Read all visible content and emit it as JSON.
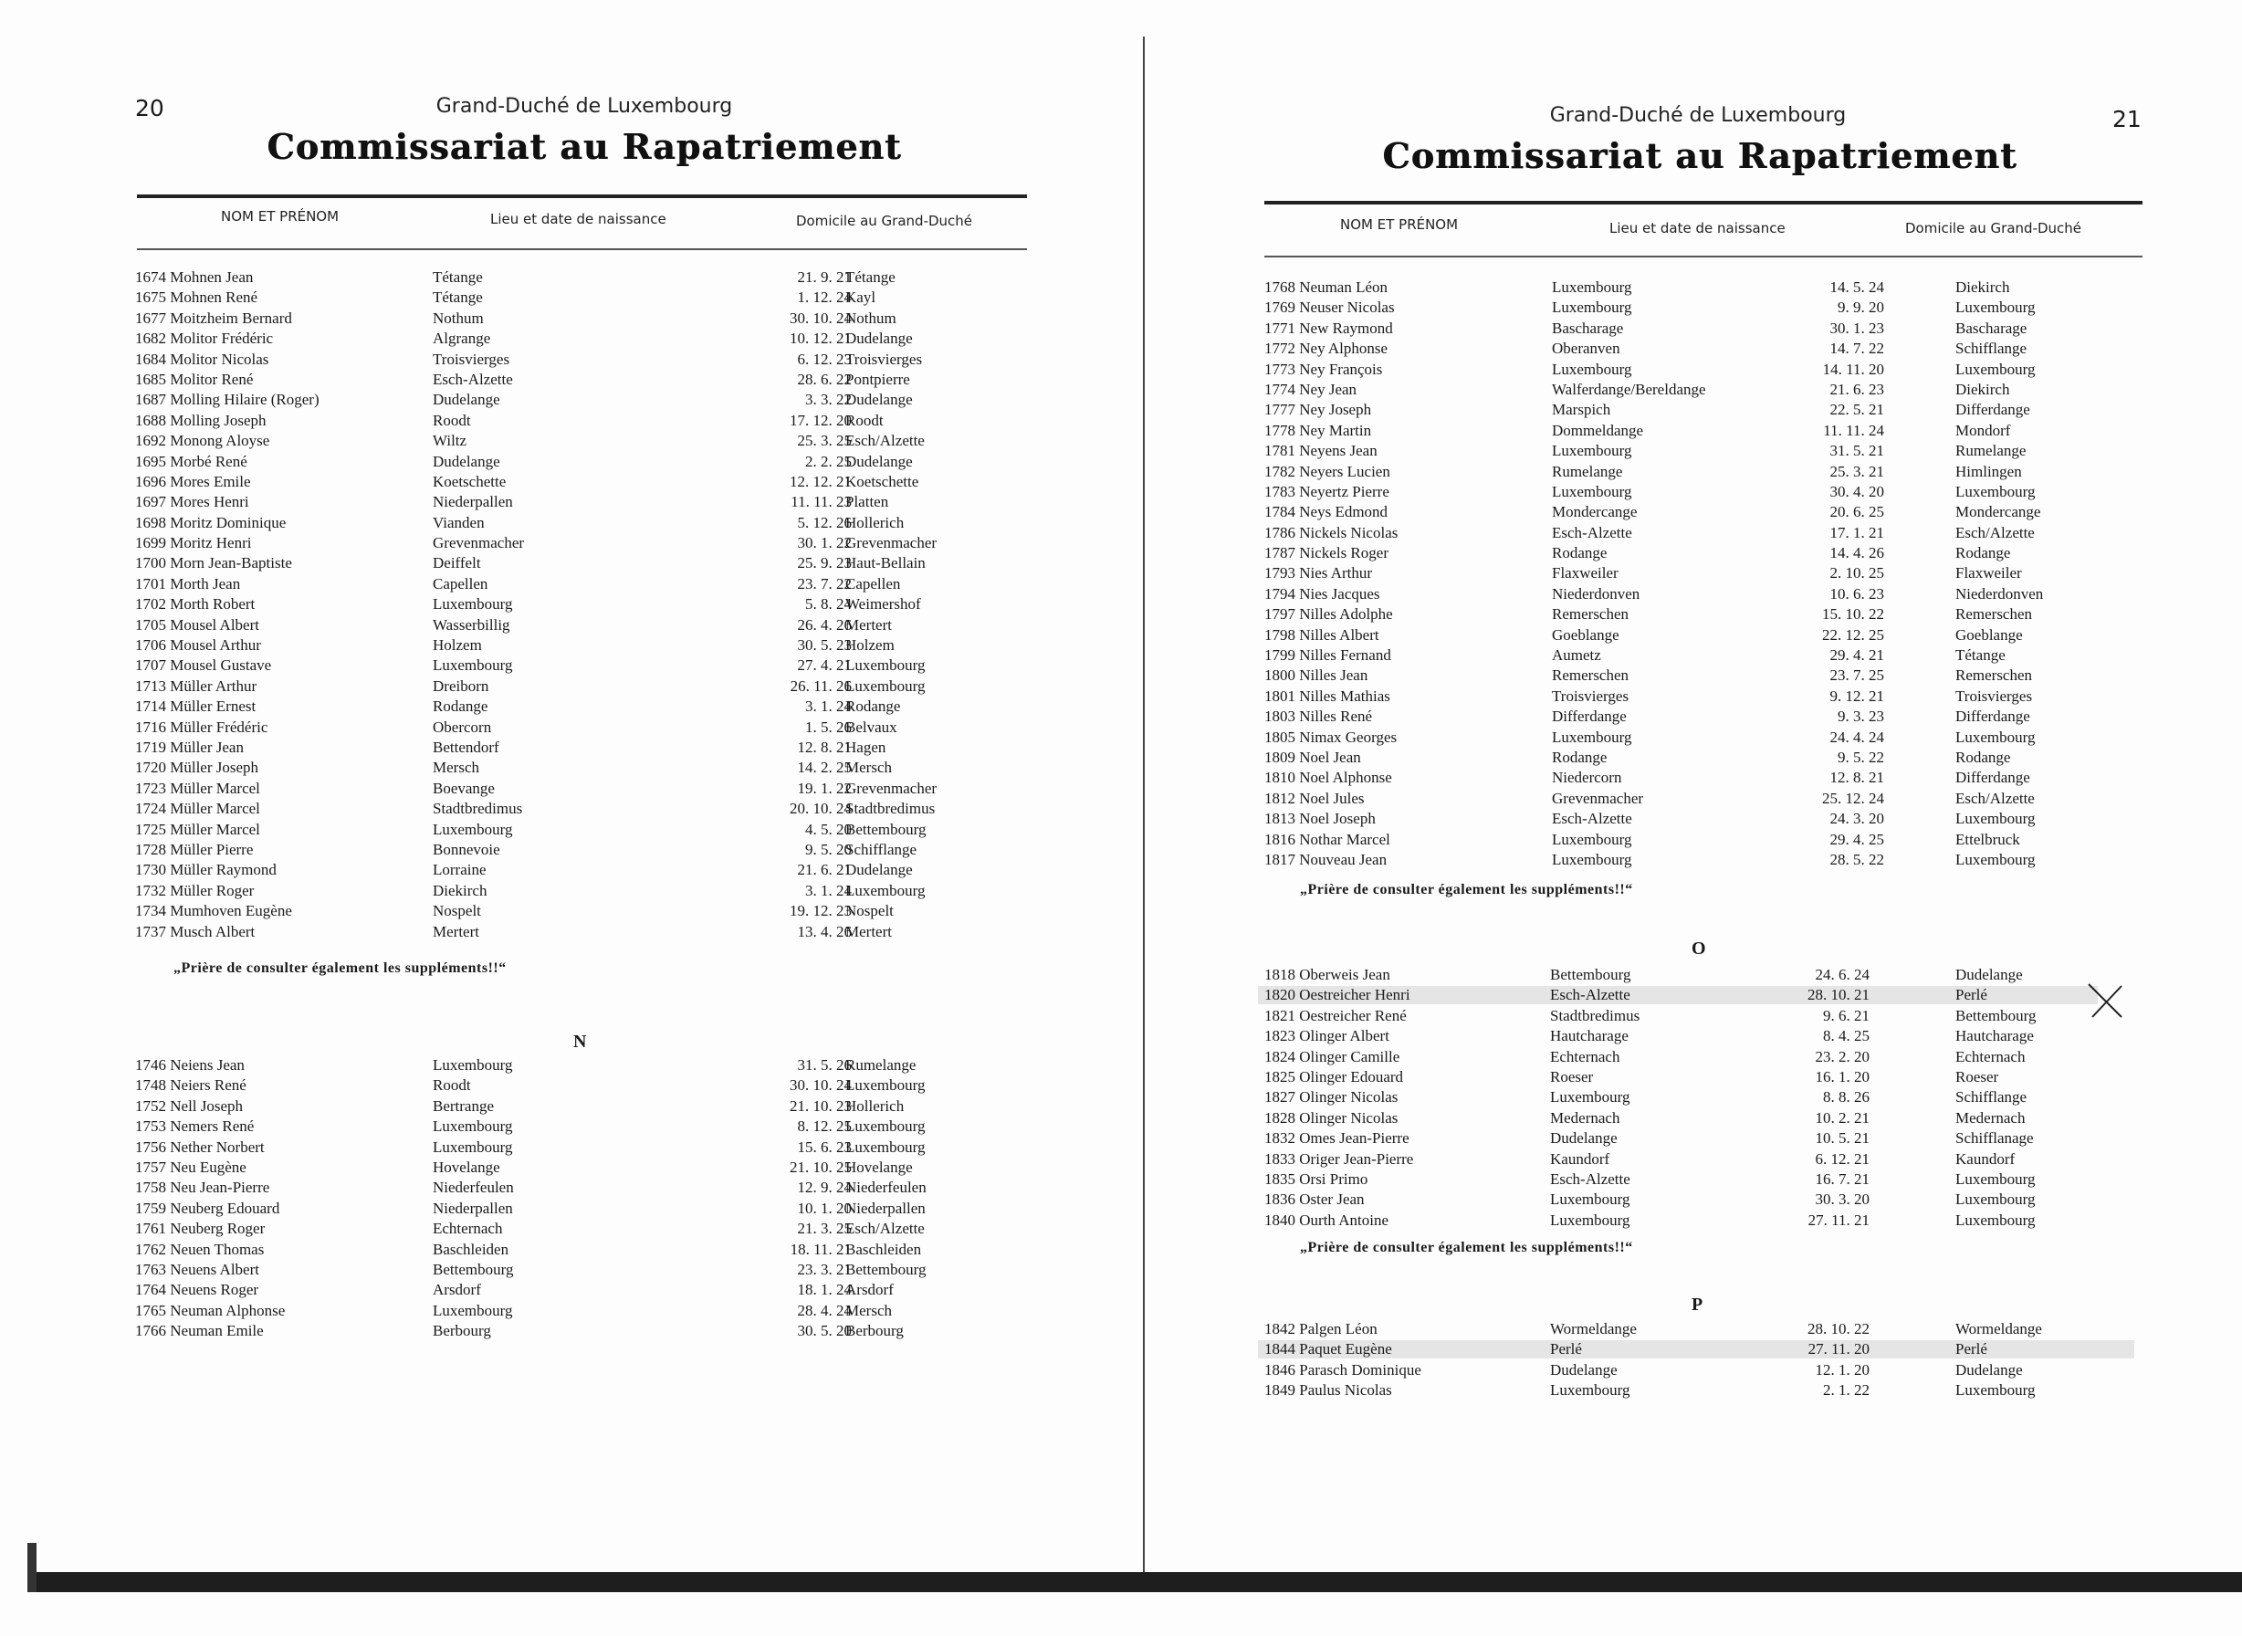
{
  "left_page": {
    "page_number": "20",
    "subtitle": "Grand-Duché de Luxembourg",
    "title": "Commissariat au Rapatriement",
    "columns": [
      "NOM ET PRÉNOM",
      "Lieu et date de naissance",
      "Domicile au Grand-Duché"
    ],
    "section_m": [
      [
        "1674 Mohnen Jean",
        "Tétange",
        "21. 9. 21",
        "Tétange"
      ],
      [
        "1675 Mohnen René",
        "Tétange",
        "1. 12. 24",
        "Kayl"
      ],
      [
        "1677 Moitzheim Bernard",
        "Nothum",
        "30. 10. 24",
        "Nothum"
      ],
      [
        "1682 Molitor Frédéric",
        "Algrange",
        "10. 12. 21",
        "Dudelange"
      ],
      [
        "1684 Molitor Nicolas",
        "Troisvierges",
        "6. 12. 23",
        "Troisvierges"
      ],
      [
        "1685 Molitor René",
        "Esch-Alzette",
        "28. 6. 22",
        "Pontpierre"
      ],
      [
        "1687 Molling Hilaire (Roger)",
        "Dudelange",
        "3. 3. 22",
        "Dudelange"
      ],
      [
        "1688 Molling Joseph",
        "Roodt",
        "17. 12. 20",
        "Roodt"
      ],
      [
        "1692 Monong Aloyse",
        "Wiltz",
        "25. 3. 25",
        "Esch/Alzette"
      ],
      [
        "1695 Morbé René",
        "Dudelange",
        "2. 2. 25",
        "Dudelange"
      ],
      [
        "1696 Mores Emile",
        "Koetschette",
        "12. 12. 21",
        "Koetschette"
      ],
      [
        "1697 Mores Henri",
        "Niederpallen",
        "11. 11. 23",
        "Platten"
      ],
      [
        "1698 Moritz Dominique",
        "Vianden",
        "5. 12. 26",
        "Hollerich"
      ],
      [
        "1699 Moritz Henri",
        "Grevenmacher",
        "30. 1. 22",
        "Grevenmacher"
      ],
      [
        "1700 Morn Jean-Baptiste",
        "Deiffelt",
        "25. 9. 23",
        "Haut-Bellain"
      ],
      [
        "1701 Morth Jean",
        "Capellen",
        "23. 7. 22",
        "Capellen"
      ],
      [
        "1702 Morth Robert",
        "Luxembourg",
        "5. 8. 24",
        "Weimershof"
      ],
      [
        "1705 Mousel Albert",
        "Wasserbillig",
        "26. 4. 26",
        "Mertert"
      ],
      [
        "1706 Mousel Arthur",
        "Holzem",
        "30. 5. 23",
        "Holzem"
      ],
      [
        "1707 Mousel Gustave",
        "Luxembourg",
        "27. 4. 21",
        "Luxembourg"
      ],
      [
        "1713 Müller Arthur",
        "Dreiborn",
        "26. 11. 26",
        "Luxembourg"
      ],
      [
        "1714 Müller Ernest",
        "Rodange",
        "3. 1. 24",
        "Rodange"
      ],
      [
        "1716 Müller Frédéric",
        "Obercorn",
        "1. 5. 26",
        "Belvaux"
      ],
      [
        "1719 Müller Jean",
        "Bettendorf",
        "12. 8. 21",
        "Hagen"
      ],
      [
        "1720 Müller Joseph",
        "Mersch",
        "14. 2. 25",
        "Mersch"
      ],
      [
        "1723 Müller Marcel",
        "Boevange",
        "19. 1. 22",
        "Grevenmacher"
      ],
      [
        "1724 Müller Marcel",
        "Stadtbredimus",
        "20. 10. 24",
        "Stadtbredimus"
      ],
      [
        "1725 Müller Marcel",
        "Luxembourg",
        "4. 5. 20",
        "Bettembourg"
      ],
      [
        "1728 Müller Pierre",
        "Bonnevoie",
        "9. 5. 20",
        "Schifflange"
      ],
      [
        "1730 Müller Raymond",
        "Lorraine",
        "21. 6. 21",
        "Dudelange"
      ],
      [
        "1732 Müller Roger",
        "Diekirch",
        "3. 1. 24",
        "Luxembourg"
      ],
      [
        "1734 Mumhoven Eugène",
        "Nospelt",
        "19. 12. 23",
        "Nospelt"
      ],
      [
        "1737 Musch Albert",
        "Mertert",
        "13. 4. 26",
        "Mertert"
      ]
    ],
    "note_m": "„Prière de consulter également les suppléments!!“",
    "letter_n": "N",
    "section_n": [
      [
        "1746 Neiens Jean",
        "Luxembourg",
        "31. 5. 26",
        "Rumelange"
      ],
      [
        "1748 Neiers René",
        "Roodt",
        "30. 10. 24",
        "Luxembourg"
      ],
      [
        "1752 Nell Joseph",
        "Bertrange",
        "21. 10. 23",
        "Hollerich"
      ],
      [
        "1753 Nemers René",
        "Luxembourg",
        "8. 12. 25",
        "Luxembourg"
      ],
      [
        "1756 Nether Norbert",
        "Luxembourg",
        "15. 6. 23",
        "Luxembourg"
      ],
      [
        "1757 Neu Eugène",
        "Hovelange",
        "21. 10. 25",
        "Hovelange"
      ],
      [
        "1758 Neu Jean-Pierre",
        "Niederfeulen",
        "12. 9. 24",
        "Niederfeulen"
      ],
      [
        "1759 Neuberg Edouard",
        "Niederpallen",
        "10. 1. 20",
        "Niederpallen"
      ],
      [
        "1761 Neuberg Roger",
        "Echternach",
        "21. 3. 25",
        "Esch/Alzette"
      ],
      [
        "1762 Neuen Thomas",
        "Baschleiden",
        "18. 11. 21",
        "Baschleiden"
      ],
      [
        "1763 Neuens Albert",
        "Bettembourg",
        "23. 3. 21",
        "Bettembourg"
      ],
      [
        "1764 Neuens Roger",
        "Arsdorf",
        "18. 1. 24",
        "Arsdorf"
      ],
      [
        "1765 Neuman Alphonse",
        "Luxembourg",
        "28. 4. 24",
        "Mersch"
      ],
      [
        "1766 Neuman Emile",
        "Berbourg",
        "30. 5. 20",
        "Berbourg"
      ]
    ]
  },
  "right_page": {
    "page_number": "21",
    "subtitle": "Grand-Duché de Luxembourg",
    "title": "Commissariat au Rapatriement",
    "columns": [
      "NOM ET PRÉNOM",
      "Lieu et date de naissance",
      "Domicile au Grand-Duché"
    ],
    "section_n": [
      [
        "1768 Neuman Léon",
        "Luxembourg",
        "14. 5. 24",
        "Diekirch"
      ],
      [
        "1769 Neuser Nicolas",
        "Luxembourg",
        "9. 9. 20",
        "Luxembourg"
      ],
      [
        "1771 New Raymond",
        "Bascharage",
        "30. 1. 23",
        "Bascharage"
      ],
      [
        "1772 Ney Alphonse",
        "Oberanven",
        "14. 7. 22",
        "Schifflange"
      ],
      [
        "1773 Ney François",
        "Luxembourg",
        "14. 11. 20",
        "Luxembourg"
      ],
      [
        "1774 Ney Jean",
        "Walferdange/Bereldange",
        "21. 6. 23",
        "Diekirch"
      ],
      [
        "1777 Ney Joseph",
        "Marspich",
        "22. 5. 21",
        "Differdange"
      ],
      [
        "1778 Ney Martin",
        "Dommeldange",
        "11. 11. 24",
        "Mondorf"
      ],
      [
        "1781 Neyens Jean",
        "Luxembourg",
        "31. 5. 21",
        "Rumelange"
      ],
      [
        "1782 Neyers Lucien",
        "Rumelange",
        "25. 3. 21",
        "Himlingen"
      ],
      [
        "1783 Neyertz Pierre",
        "Luxembourg",
        "30. 4. 20",
        "Luxembourg"
      ],
      [
        "1784 Neys Edmond",
        "Mondercange",
        "20. 6. 25",
        "Mondercange"
      ],
      [
        "1786 Nickels Nicolas",
        "Esch-Alzette",
        "17. 1. 21",
        "Esch/Alzette"
      ],
      [
        "1787 Nickels Roger",
        "Rodange",
        "14. 4. 26",
        "Rodange"
      ],
      [
        "1793 Nies Arthur",
        "Flaxweiler",
        "2. 10. 25",
        "Flaxweiler"
      ],
      [
        "1794 Nies Jacques",
        "Niederdonven",
        "10. 6. 23",
        "Niederdonven"
      ],
      [
        "1797 Nilles Adolphe",
        "Remerschen",
        "15. 10. 22",
        "Remerschen"
      ],
      [
        "1798 Nilles Albert",
        "Goeblange",
        "22. 12. 25",
        "Goeblange"
      ],
      [
        "1799 Nilles Fernand",
        "Aumetz",
        "29. 4. 21",
        "Tétange"
      ],
      [
        "1800 Nilles Jean",
        "Remerschen",
        "23. 7. 25",
        "Remerschen"
      ],
      [
        "1801 Nilles Mathias",
        "Troisvierges",
        "9. 12. 21",
        "Troisvierges"
      ],
      [
        "1803 Nilles René",
        "Differdange",
        "9. 3. 23",
        "Differdange"
      ],
      [
        "1805 Nimax Georges",
        "Luxembourg",
        "24. 4. 24",
        "Luxembourg"
      ],
      [
        "1809 Noel Jean",
        "Rodange",
        "9. 5. 22",
        "Rodange"
      ],
      [
        "1810 Noel Alphonse",
        "Niedercorn",
        "12. 8. 21",
        "Differdange"
      ],
      [
        "1812 Noel Jules",
        "Grevenmacher",
        "25. 12. 24",
        "Esch/Alzette"
      ],
      [
        "1813 Noel Joseph",
        "Esch-Alzette",
        "24. 3. 20",
        "Luxembourg"
      ],
      [
        "1816 Nothar Marcel",
        "Luxembourg",
        "29. 4. 25",
        "Ettelbruck"
      ],
      [
        "1817 Nouveau Jean",
        "Luxembourg",
        "28. 5. 22",
        "Luxembourg"
      ]
    ],
    "note_n": "„Prière de consulter également les suppléments!!“",
    "letter_o": "O",
    "section_o": [
      [
        "1818 Oberweis Jean",
        "Bettembourg",
        "24. 6. 24",
        "Dudelange"
      ],
      [
        "1820 Oestreicher Henri",
        "Esch-Alzette",
        "28. 10. 21",
        "Perlé"
      ],
      [
        "1821 Oestreicher René",
        "Stadtbredimus",
        "9. 6. 21",
        "Bettembourg"
      ],
      [
        "1823 Olinger Albert",
        "Hautcharage",
        "8. 4. 25",
        "Hautcharage"
      ],
      [
        "1824 Olinger Camille",
        "Echternach",
        "23. 2. 20",
        "Echternach"
      ],
      [
        "1825 Olinger Edouard",
        "Roeser",
        "16. 1. 20",
        "Roeser"
      ],
      [
        "1827 Olinger Nicolas",
        "Luxembourg",
        "8. 8. 26",
        "Schifflange"
      ],
      [
        "1828 Olinger Nicolas",
        "Medernach",
        "10. 2. 21",
        "Medernach"
      ],
      [
        "1832 Omes Jean-Pierre",
        "Dudelange",
        "10. 5. 21",
        "Schifflanage"
      ],
      [
        "1833 Origer Jean-Pierre",
        "Kaundorf",
        "6. 12. 21",
        "Kaundorf"
      ],
      [
        "1835 Orsi Primo",
        "Esch-Alzette",
        "16. 7. 21",
        "Luxembourg"
      ],
      [
        "1836 Oster Jean",
        "Luxembourg",
        "30. 3. 20",
        "Luxembourg"
      ],
      [
        "1840 Ourth Antoine",
        "Luxembourg",
        "27. 11. 21",
        "Luxembourg"
      ]
    ],
    "note_o": "„Prière de consulter également les suppléments!!“",
    "letter_p": "P",
    "section_p": [
      [
        "1842 Palgen Léon",
        "Wormeldange",
        "28. 10. 22",
        "Wormeldange"
      ],
      [
        "1844 Paquet Eugène",
        "Perlé",
        "27. 11. 20",
        "Perlé"
      ],
      [
        "1846 Parasch Dominique",
        "Dudelange",
        "12. 1. 20",
        "Dudelange"
      ],
      [
        "1849 Paulus Nicolas",
        "Luxembourg",
        "2. 1. 22",
        "Luxembourg"
      ]
    ]
  },
  "annotations": {
    "highlighted_rows": [
      "1820 Oestreicher Henri",
      "1844 Paquet Eugène"
    ],
    "handwritten_mark": "x-mark-icon"
  }
}
